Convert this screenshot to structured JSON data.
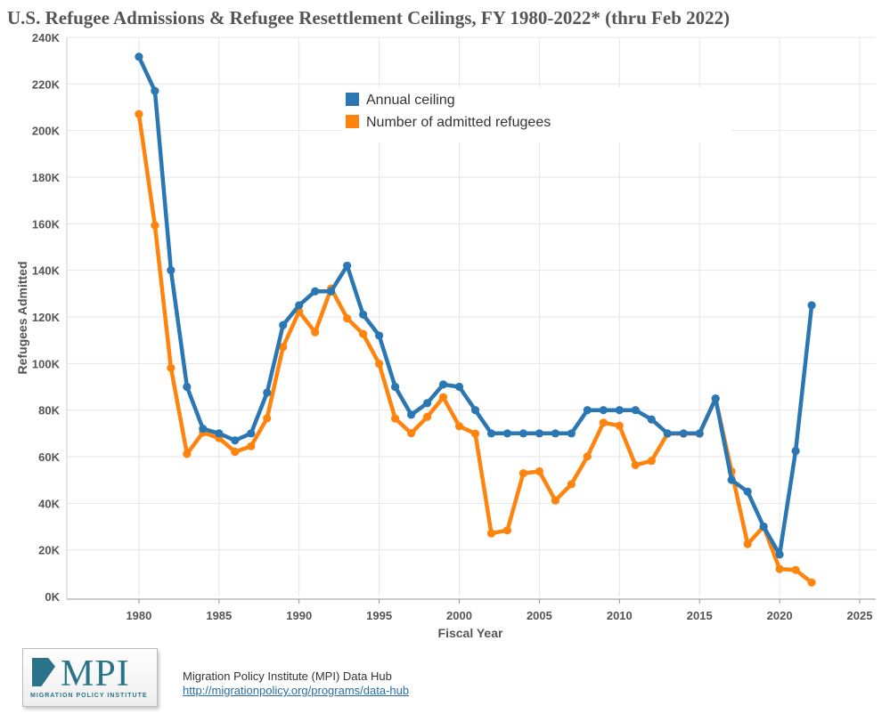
{
  "title": "U.S. Refugee Admissions & Refugee Resettlement Ceilings, FY 1980-2022* (thru Feb 2022)",
  "colors": {
    "ceiling": "#2a77b4",
    "admitted": "#ff840e",
    "grid": "#e6e6e6",
    "axis_text": "#555555"
  },
  "footer": {
    "logo_text": "MPI",
    "logo_sub": "MIGRATION POLICY INSTITUTE",
    "source": "Migration Policy Institute (MPI) Data Hub",
    "url": "http://migrationpolicy.org/programs/data-hub"
  },
  "chart_data": {
    "type": "line",
    "title": "U.S. Refugee Admissions & Refugee Resettlement Ceilings, FY 1980-2022* (thru Feb 2022)",
    "xlabel": "Fiscal Year",
    "ylabel": "Refugees Admitted",
    "xlim": [
      1975.5,
      2026
    ],
    "ylim": [
      0,
      240000
    ],
    "x_ticks": [
      1980,
      1985,
      1990,
      1995,
      2000,
      2005,
      2010,
      2015,
      2020,
      2025
    ],
    "y_ticks": [
      0,
      20000,
      40000,
      60000,
      80000,
      100000,
      120000,
      140000,
      160000,
      180000,
      200000,
      220000,
      240000
    ],
    "y_tick_labels": [
      "0K",
      "20K",
      "40K",
      "60K",
      "80K",
      "100K",
      "120K",
      "140K",
      "160K",
      "180K",
      "200K",
      "220K",
      "240K"
    ],
    "grid": true,
    "legend": "top-center",
    "x": [
      1980,
      1981,
      1982,
      1983,
      1984,
      1985,
      1986,
      1987,
      1988,
      1989,
      1990,
      1991,
      1992,
      1993,
      1994,
      1995,
      1996,
      1997,
      1998,
      1999,
      2000,
      2001,
      2002,
      2003,
      2004,
      2005,
      2006,
      2007,
      2008,
      2009,
      2010,
      2011,
      2012,
      2013,
      2014,
      2015,
      2016,
      2017,
      2018,
      2019,
      2020,
      2021,
      2022
    ],
    "series": [
      {
        "name": "Annual ceiling",
        "color": "#2a77b4",
        "values": [
          231700,
          217000,
          140000,
          90000,
          72000,
          70000,
          67000,
          70000,
          87500,
          116500,
          125000,
          131000,
          131000,
          142000,
          121000,
          112000,
          90000,
          78000,
          83000,
          91000,
          90000,
          80000,
          70000,
          70000,
          70000,
          70000,
          70000,
          70000,
          80000,
          80000,
          80000,
          80000,
          76000,
          70000,
          70000,
          70000,
          85000,
          50000,
          45000,
          30000,
          18000,
          62500,
          125000
        ]
      },
      {
        "name": "Number of admitted refugees",
        "color": "#ff840e",
        "values": [
          207100,
          159300,
          98100,
          61200,
          70400,
          68000,
          62100,
          64500,
          76500,
          107100,
          122300,
          113400,
          132200,
          119400,
          112700,
          99900,
          76400,
          70100,
          77100,
          85500,
          73100,
          69900,
          27100,
          28400,
          52900,
          53700,
          41200,
          48200,
          60100,
          74600,
          73300,
          56400,
          58200,
          69900,
          69900,
          69900,
          84900,
          53700,
          22500,
          30000,
          11800,
          11400,
          6000
        ]
      }
    ]
  }
}
